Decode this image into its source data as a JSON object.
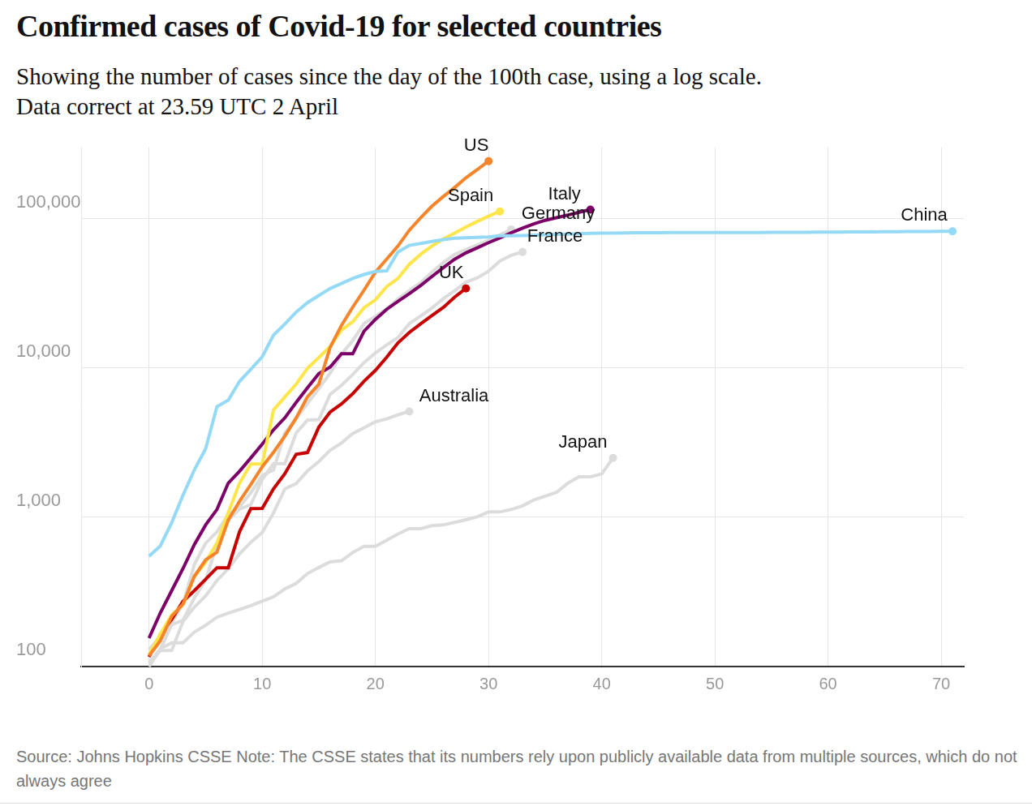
{
  "chart_data": {
    "type": "line",
    "title": "Confirmed cases of Covid-19 for selected countries",
    "subtitle": [
      "Showing the number of cases since the day of the 100th case, using a log scale.",
      "Data correct at 23.59 UTC 2 April"
    ],
    "note": "Source: Johns Hopkins CSSE Note: The CSSE states that its numbers rely upon publicly available data from multiple sources, which do not always agree",
    "log": "y",
    "grid": true,
    "marker": "end",
    "xlim": [
      -6,
      72
    ],
    "xticks": [
      0,
      10,
      20,
      30,
      40,
      50,
      60,
      70
    ],
    "ylim": [
      100,
      300000
    ],
    "yticks": [
      100,
      {
        "value": 1000,
        "label": "1,000"
      },
      {
        "value": 10000,
        "label": "10,000"
      },
      {
        "value": 100000,
        "label": "100,000"
      }
    ],
    "x": [
      0,
      1,
      2,
      3,
      4,
      5,
      6,
      7,
      8,
      9,
      10,
      11,
      12,
      13,
      14,
      15,
      16,
      17,
      18,
      19,
      20,
      21,
      22,
      23,
      24,
      25,
      26,
      27,
      28,
      29,
      30,
      31,
      32,
      33,
      34,
      35,
      36,
      37,
      38,
      39,
      40,
      41,
      42,
      43,
      44,
      45,
      46,
      47,
      48,
      49,
      50,
      51,
      52,
      53,
      54,
      55,
      56,
      57,
      58,
      59,
      60,
      61,
      62,
      63,
      64,
      65,
      66,
      67,
      68,
      69,
      70,
      71
    ],
    "series": [
      {
        "name": "China",
        "color": "#94d9f5",
        "values": [
          548,
          643,
          920,
          1406,
          2075,
          2877,
          5509,
          6087,
          8141,
          9802,
          11891,
          16630,
          19716,
          23707,
          27440,
          30587,
          34110,
          36814,
          39829,
          42354,
          44386,
          44759,
          59895,
          66358,
          68413,
          70513,
          72434,
          74211,
          74619,
          75077,
          75550,
          77001,
          77022,
          77241,
          77754,
          78166,
          78600,
          78928,
          79356,
          79932,
          80136,
          80261,
          80386,
          80537,
          80690,
          80770,
          80823,
          80860,
          80887,
          80921,
          80932,
          80945,
          80977,
          81003,
          81033,
          81058,
          81102,
          81156,
          81250,
          81305,
          81435,
          81498,
          81591,
          81661,
          81782,
          81897,
          81999,
          82122,
          82198,
          82279,
          82361,
          82432
        ]
      },
      {
        "name": "US",
        "color": "#f5842a",
        "values": [
          118,
          149,
          217,
          262,
          402,
          518,
          583,
          959,
          1281,
          1663,
          2179,
          2727,
          3499,
          4632,
          6421,
          7783,
          13747,
          19273,
          25600,
          33276,
          43847,
          53740,
          65778,
          83836,
          101657,
          121478,
          140886,
          161807,
          188172,
          213372,
          243453,
          null,
          null,
          null,
          null,
          null,
          null,
          null,
          null,
          null,
          null,
          null,
          null,
          null,
          null,
          null,
          null,
          null,
          null,
          null,
          null,
          null,
          null,
          null,
          null,
          null,
          null,
          null,
          null,
          null,
          null,
          null,
          null,
          null,
          null,
          null,
          null,
          null,
          null,
          null,
          null,
          null
        ]
      },
      {
        "name": "Spain",
        "color": "#fde54a",
        "values": [
          120,
          165,
          222,
          259,
          400,
          500,
          673,
          1073,
          1695,
          2277,
          2277,
          5232,
          6391,
          7798,
          9942,
          11748,
          13910,
          17963,
          20410,
          25374,
          28603,
          35136,
          39885,
          49515,
          57786,
          65719,
          73235,
          80110,
          87956,
          95923,
          104118,
          112065,
          null,
          null,
          null,
          null,
          null,
          null,
          null,
          null,
          null,
          null,
          null,
          null,
          null,
          null,
          null,
          null,
          null,
          null,
          null,
          null,
          null,
          null,
          null,
          null,
          null,
          null,
          null,
          null,
          null,
          null,
          null,
          null,
          null,
          null,
          null,
          null,
          null,
          null,
          null,
          null
        ]
      },
      {
        "name": "Italy",
        "color": "#7d0068",
        "values": [
          155,
          229,
          322,
          453,
          655,
          888,
          1128,
          1694,
          2036,
          2502,
          3089,
          3858,
          4636,
          5883,
          7375,
          9172,
          10149,
          12462,
          12462,
          17660,
          21157,
          24747,
          27980,
          31506,
          35713,
          41035,
          47021,
          53578,
          59138,
          63927,
          69176,
          74386,
          80589,
          86498,
          92472,
          97689,
          101739,
          105792,
          110574,
          115242,
          null,
          null,
          null,
          null,
          null,
          null,
          null,
          null,
          null,
          null,
          null,
          null,
          null,
          null,
          null,
          null,
          null,
          null,
          null,
          null,
          null,
          null,
          null,
          null,
          null,
          null,
          null,
          null,
          null,
          null,
          null,
          null
        ]
      },
      {
        "name": "UK",
        "color": "#c70000",
        "values": [
          116,
          164,
          207,
          274,
          322,
          384,
          459,
          459,
          802,
          1144,
          1145,
          1551,
          1960,
          2642,
          2716,
          4014,
          5067,
          5745,
          6726,
          8164,
          9640,
          11812,
          14745,
          17312,
          19780,
          22453,
          25481,
          29865,
          34173,
          null,
          null,
          null,
          null,
          null,
          null,
          null,
          null,
          null,
          null,
          null,
          null,
          null,
          null,
          null,
          null,
          null,
          null,
          null,
          null,
          null,
          null,
          null,
          null,
          null,
          null,
          null,
          null,
          null,
          null,
          null,
          null,
          null,
          null,
          null,
          null,
          null,
          null,
          null,
          null,
          null,
          null,
          null
        ]
      },
      {
        "name": "Germany",
        "color": "#dcdcdc",
        "values": [
          130,
          159,
          196,
          262,
          482,
          670,
          799,
          1040,
          1176,
          1457,
          1908,
          2078,
          3675,
          4585,
          5795,
          7272,
          9257,
          12327,
          15320,
          19848,
          22213,
          24873,
          29056,
          32986,
          37323,
          43938,
          50871,
          57695,
          62095,
          66885,
          71808,
          77872,
          84794,
          null,
          null,
          null,
          null,
          null,
          null,
          null,
          null,
          null,
          null,
          null,
          null,
          null,
          null,
          null,
          null,
          null,
          null,
          null,
          null,
          null,
          null,
          null,
          null,
          null,
          null,
          null,
          null,
          null,
          null,
          null,
          null,
          null,
          null,
          null,
          null,
          null,
          null,
          null
        ]
      },
      {
        "name": "France",
        "color": "#dcdcdc",
        "values": [
          100,
          130,
          191,
          204,
          288,
          380,
          656,
          957,
          1134,
          1217,
          1792,
          2289,
          2289,
          3672,
          4480,
          4513,
          6650,
          7652,
          9043,
          10871,
          12612,
          14282,
          16018,
          19856,
          22304,
          25233,
          29155,
          32964,
          37575,
          40174,
          44550,
          52128,
          56989,
          59929,
          null,
          null,
          null,
          null,
          null,
          null,
          null,
          null,
          null,
          null,
          null,
          null,
          null,
          null,
          null,
          null,
          null,
          null,
          null,
          null,
          null,
          null,
          null,
          null,
          null,
          null,
          null,
          null,
          null,
          null,
          null,
          null,
          null,
          null,
          null,
          null,
          null,
          null
        ]
      },
      {
        "name": "Australia",
        "color": "#dcdcdc",
        "values": [
          107,
          128,
          128,
          200,
          250,
          297,
          377,
          452,
          568,
          681,
          791,
          1071,
          1549,
          1682,
          2044,
          2364,
          2810,
          3143,
          3640,
          3984,
          4361,
          4559,
          4862,
          5116,
          null,
          null,
          null,
          null,
          null,
          null,
          null,
          null,
          null,
          null,
          null,
          null,
          null,
          null,
          null,
          null,
          null,
          null,
          null,
          null,
          null,
          null,
          null,
          null,
          null,
          null,
          null,
          null,
          null,
          null,
          null,
          null,
          null,
          null,
          null,
          null,
          null,
          null,
          null,
          null,
          null,
          null,
          null,
          null,
          null,
          null,
          null,
          null
        ]
      },
      {
        "name": "Japan",
        "color": "#dcdcdc",
        "values": [
          105,
          132,
          144,
          144,
          170,
          189,
          214,
          228,
          241,
          256,
          274,
          293,
          331,
          360,
          420,
          461,
          502,
          511,
          581,
          639,
          639,
          701,
          773,
          839,
          839,
          878,
          889,
          924,
          963,
          1007,
          1086,
          1086,
          1128,
          1193,
          1307,
          1387,
          1468,
          1693,
          1866,
          1866,
          1953,
          2500,
          null,
          null,
          null,
          null,
          null,
          null,
          null,
          null,
          null,
          null,
          null,
          null,
          null,
          null,
          null,
          null,
          null,
          null,
          null,
          null,
          null,
          null,
          null,
          null,
          null,
          null,
          null,
          null,
          null,
          null
        ]
      }
    ]
  }
}
